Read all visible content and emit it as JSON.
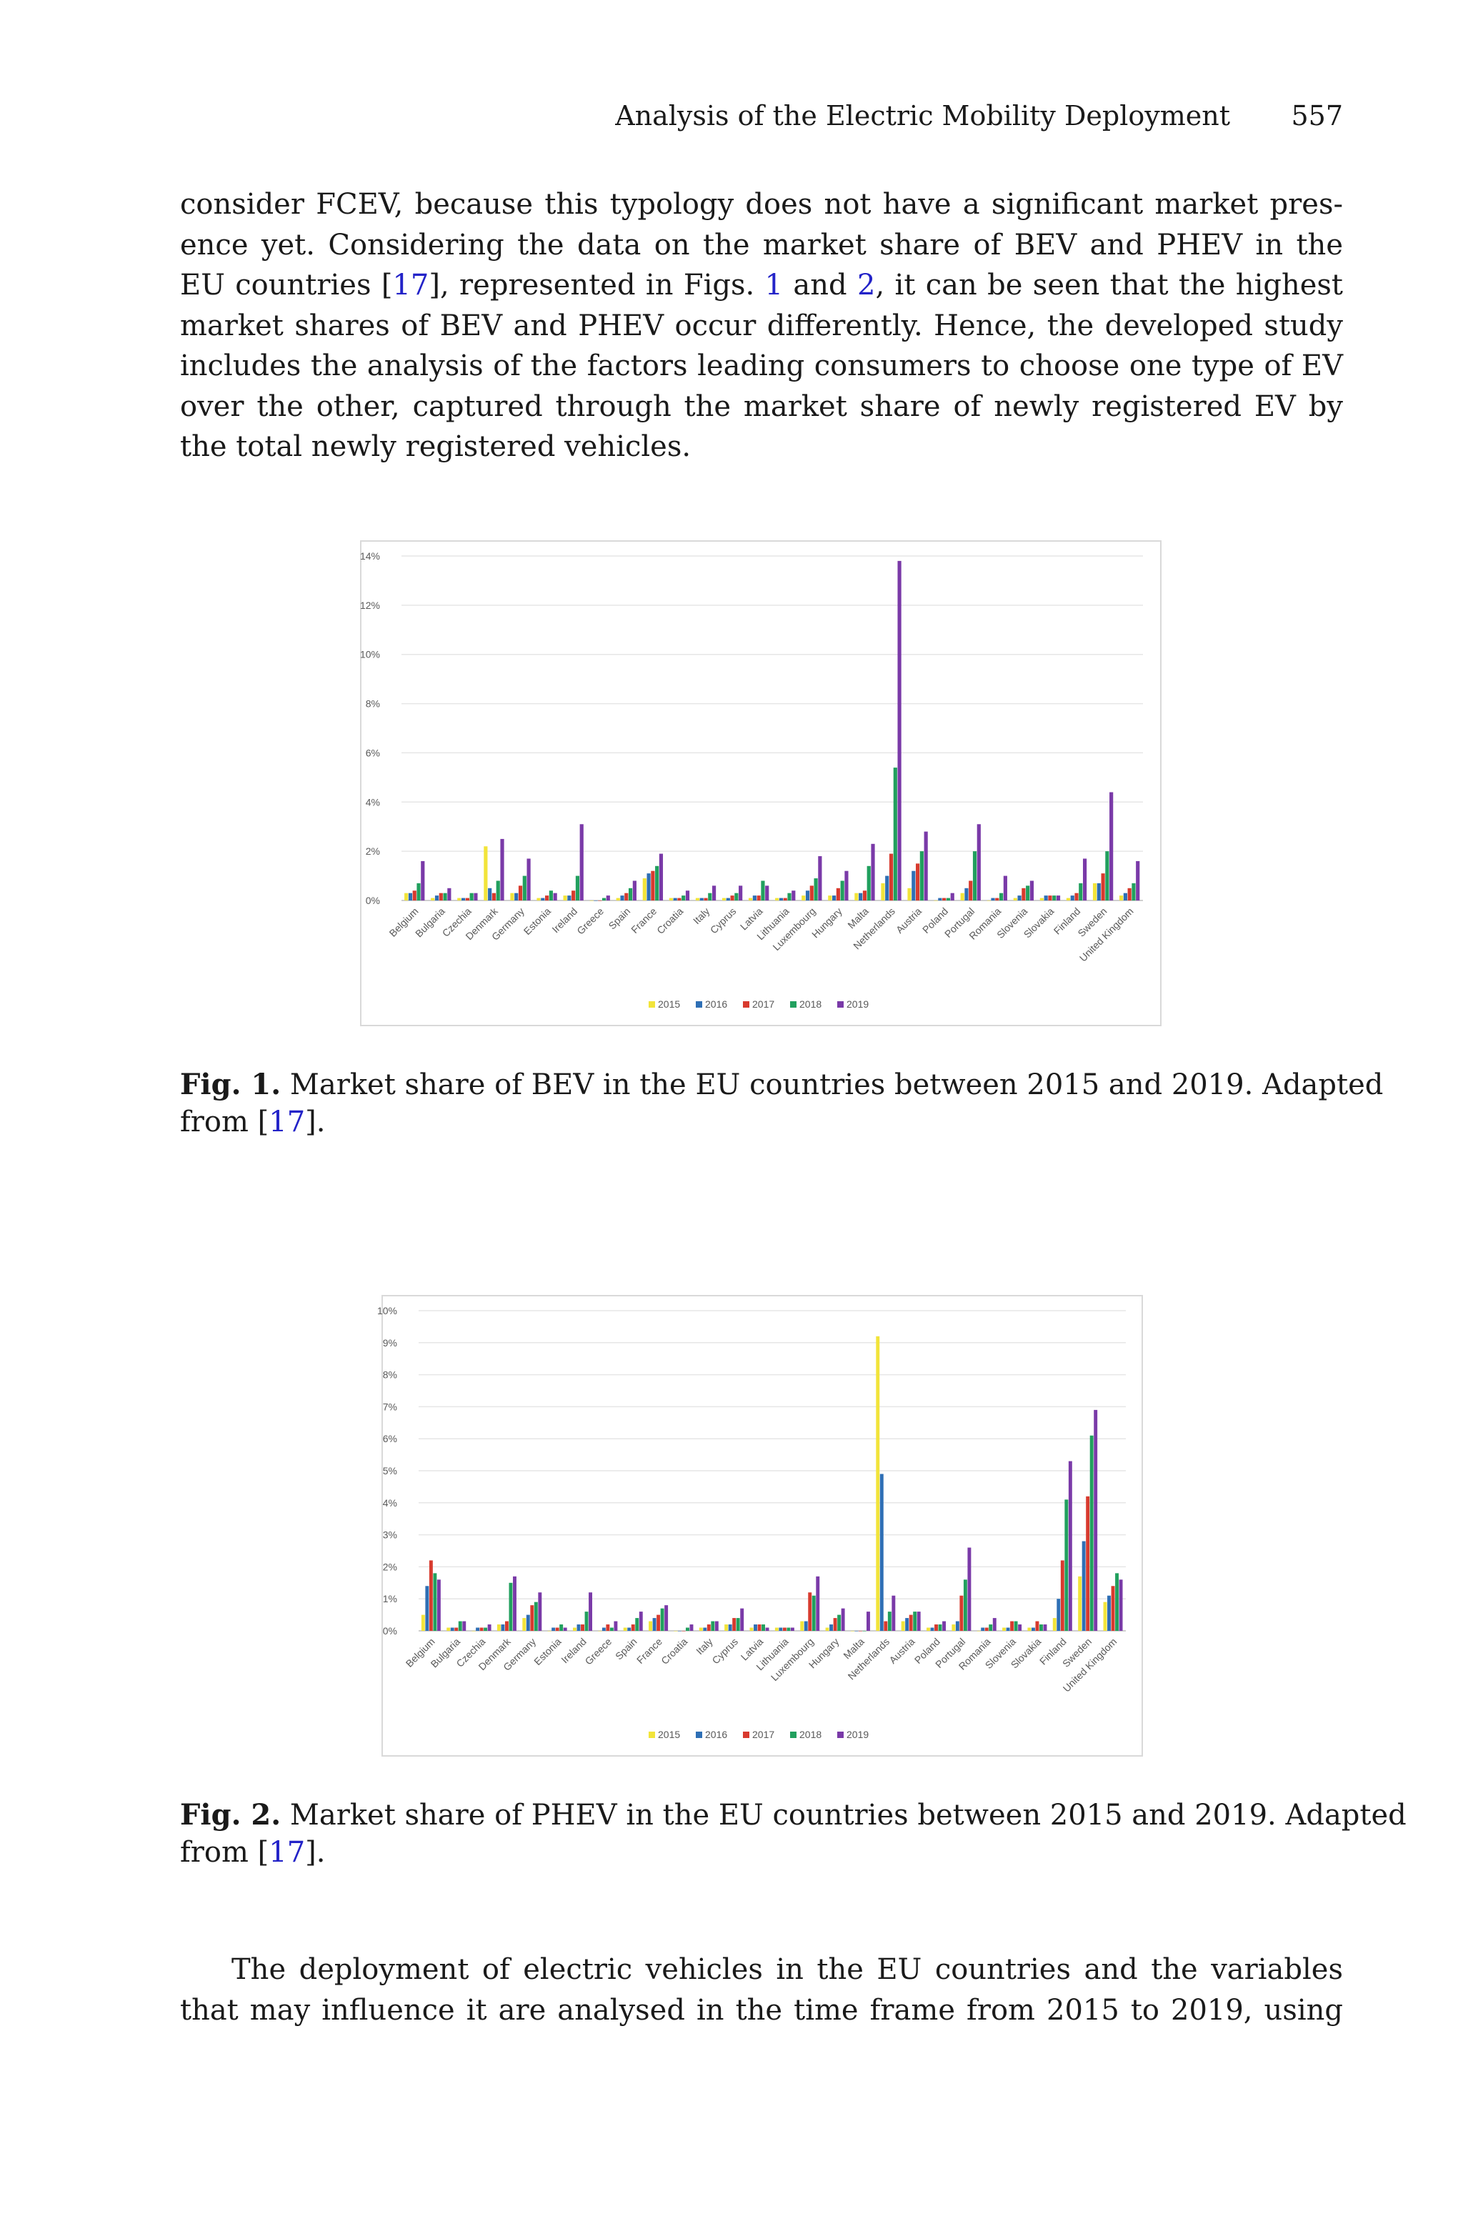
{
  "header": {
    "title": "Analysis of the Electric Mobility Deployment",
    "page_number": "557"
  },
  "paragraph1": [
    {
      "parts": [
        {
          "t": "consider FCEV, because this typology does not have a significant market pres-"
        }
      ]
    },
    {
      "parts": [
        {
          "t": "ence yet. Considering the data on the market share of BEV and PHEV in the"
        }
      ]
    },
    {
      "parts": [
        {
          "t": "EU countries ["
        },
        {
          "t": "17",
          "ref": true
        },
        {
          "t": "], represented in Figs. "
        },
        {
          "t": "1",
          "ref": true
        },
        {
          "t": " and "
        },
        {
          "t": "2",
          "ref": true
        },
        {
          "t": ", it can be seen that the highest"
        }
      ]
    },
    {
      "parts": [
        {
          "t": "market shares of BEV and PHEV occur differently. Hence, the developed study"
        }
      ]
    },
    {
      "parts": [
        {
          "t": "includes the analysis of the factors leading consumers to choose one type of EV"
        }
      ]
    },
    {
      "parts": [
        {
          "t": "over the other, captured through the market share of newly registered EV by"
        }
      ]
    },
    {
      "parts": [
        {
          "t": "the total newly registered vehicles."
        }
      ],
      "last": true
    }
  ],
  "figure1": {
    "caption_label": "Fig. 1.",
    "caption_text": " Market share of BEV in the EU countries between 2015 and 2019.  Adapted",
    "caption_line2_prefix": "from [",
    "caption_ref": "17",
    "caption_line2_suffix": "]."
  },
  "figure2": {
    "caption_label": "Fig. 2.",
    "caption_text": " Market share of PHEV in the EU countries between 2015 and 2019.  Adapted",
    "caption_line2_prefix": "from [",
    "caption_ref": "17",
    "caption_line2_suffix": "]."
  },
  "paragraph2": [
    {
      "parts": [
        {
          "t": "The deployment of electric vehicles in the EU countries and the variables"
        }
      ],
      "indent": true
    },
    {
      "parts": [
        {
          "t": "that may influence it are analysed in the time frame from 2015 to 2019, using"
        }
      ]
    }
  ],
  "chart_data": [
    {
      "type": "bar",
      "title": "",
      "xlabel": "",
      "ylabel": "",
      "ylim": [
        0,
        14
      ],
      "yticks": [
        "0%",
        "2%",
        "4%",
        "6%",
        "8%",
        "10%",
        "12%",
        "14%"
      ],
      "unit": "%",
      "grid": true,
      "legend_position": "bottom",
      "categories": [
        "Belgium",
        "Bulgaria",
        "Czechia",
        "Denmark",
        "Germany",
        "Estonia",
        "Ireland",
        "Greece",
        "Spain",
        "France",
        "Croatia",
        "Italy",
        "Cyprus",
        "Latvia",
        "Lithuania",
        "Luxembourg",
        "Hungary",
        "Malta",
        "Netherlands",
        "Austria",
        "Poland",
        "Portugal",
        "Romania",
        "Slovenia",
        "Slovakia",
        "Finland",
        "Sweden",
        "United Kingdom"
      ],
      "series": [
        {
          "name": "2015",
          "color": "#f2e43a",
          "values": [
            0.3,
            0.1,
            0.1,
            2.2,
            0.3,
            0.1,
            0.2,
            0.0,
            0.1,
            0.9,
            0.1,
            0.1,
            0.1,
            0.1,
            0.1,
            0.2,
            0.2,
            0.3,
            0.7,
            0.5,
            0.0,
            0.3,
            0.0,
            0.1,
            0.1,
            0.1,
            0.7,
            0.2
          ]
        },
        {
          "name": "2016",
          "color": "#2e6fb5",
          "values": [
            0.3,
            0.2,
            0.1,
            0.5,
            0.3,
            0.1,
            0.2,
            0.0,
            0.2,
            1.1,
            0.1,
            0.1,
            0.1,
            0.2,
            0.1,
            0.4,
            0.2,
            0.3,
            1.0,
            1.2,
            0.1,
            0.5,
            0.1,
            0.2,
            0.2,
            0.2,
            0.7,
            0.3
          ]
        },
        {
          "name": "2017",
          "color": "#d83a2e",
          "values": [
            0.4,
            0.3,
            0.1,
            0.3,
            0.6,
            0.2,
            0.4,
            0.0,
            0.3,
            1.2,
            0.1,
            0.1,
            0.2,
            0.2,
            0.1,
            0.6,
            0.5,
            0.4,
            1.9,
            1.5,
            0.1,
            0.8,
            0.1,
            0.5,
            0.2,
            0.3,
            1.1,
            0.5
          ]
        },
        {
          "name": "2018",
          "color": "#21a05e",
          "values": [
            0.7,
            0.3,
            0.3,
            0.8,
            1.0,
            0.4,
            1.0,
            0.1,
            0.5,
            1.4,
            0.2,
            0.3,
            0.3,
            0.8,
            0.3,
            0.9,
            0.8,
            1.4,
            5.4,
            2.0,
            0.1,
            2.0,
            0.3,
            0.6,
            0.2,
            0.7,
            2.0,
            0.7
          ]
        },
        {
          "name": "2019",
          "color": "#7a3aa8",
          "values": [
            1.6,
            0.5,
            0.3,
            2.5,
            1.7,
            0.3,
            3.1,
            0.2,
            0.8,
            1.9,
            0.4,
            0.6,
            0.6,
            0.6,
            0.4,
            1.8,
            1.2,
            2.3,
            13.8,
            2.8,
            0.3,
            3.1,
            1.0,
            0.8,
            0.2,
            1.7,
            4.4,
            1.6
          ]
        }
      ]
    },
    {
      "type": "bar",
      "title": "",
      "xlabel": "",
      "ylabel": "",
      "ylim": [
        0,
        10
      ],
      "yticks": [
        "0%",
        "1%",
        "2%",
        "3%",
        "4%",
        "5%",
        "6%",
        "7%",
        "8%",
        "9%",
        "10%"
      ],
      "unit": "%",
      "grid": true,
      "legend_position": "bottom",
      "categories": [
        "Belgium",
        "Bulgaria",
        "Czechia",
        "Denmark",
        "Germany",
        "Estonia",
        "Ireland",
        "Greece",
        "Spain",
        "France",
        "Croatia",
        "Italy",
        "Cyprus",
        "Latvia",
        "Lithuania",
        "Luxembourg",
        "Hungary",
        "Malta",
        "Netherlands",
        "Austria",
        "Poland",
        "Portugal",
        "Romania",
        "Slovenia",
        "Slovakia",
        "Finland",
        "Sweden",
        "United Kingdom"
      ],
      "series": [
        {
          "name": "2015",
          "color": "#f2e43a",
          "values": [
            0.5,
            0.1,
            0.0,
            0.2,
            0.4,
            0.0,
            0.1,
            0.0,
            0.1,
            0.3,
            0.0,
            0.1,
            0.2,
            0.1,
            0.1,
            0.3,
            0.1,
            0.0,
            9.2,
            0.3,
            0.1,
            0.2,
            0.0,
            0.1,
            0.1,
            0.4,
            1.7,
            0.9
          ]
        },
        {
          "name": "2016",
          "color": "#2e6fb5",
          "values": [
            1.4,
            0.1,
            0.1,
            0.2,
            0.5,
            0.1,
            0.2,
            0.1,
            0.1,
            0.4,
            0.0,
            0.1,
            0.2,
            0.2,
            0.1,
            0.3,
            0.2,
            0.0,
            4.9,
            0.4,
            0.1,
            0.3,
            0.1,
            0.1,
            0.1,
            1.0,
            2.8,
            1.1
          ]
        },
        {
          "name": "2017",
          "color": "#d83a2e",
          "values": [
            2.2,
            0.1,
            0.1,
            0.3,
            0.8,
            0.1,
            0.2,
            0.2,
            0.2,
            0.5,
            0.0,
            0.2,
            0.4,
            0.2,
            0.1,
            1.2,
            0.4,
            0.0,
            0.3,
            0.5,
            0.2,
            1.1,
            0.1,
            0.3,
            0.3,
            2.2,
            4.2,
            1.4
          ]
        },
        {
          "name": "2018",
          "color": "#21a05e",
          "values": [
            1.8,
            0.3,
            0.1,
            1.5,
            0.9,
            0.2,
            0.6,
            0.1,
            0.4,
            0.7,
            0.1,
            0.3,
            0.4,
            0.2,
            0.1,
            1.1,
            0.5,
            0.0,
            0.6,
            0.6,
            0.2,
            1.6,
            0.2,
            0.3,
            0.2,
            4.1,
            6.1,
            1.8
          ]
        },
        {
          "name": "2019",
          "color": "#7a3aa8",
          "values": [
            1.6,
            0.3,
            0.2,
            1.7,
            1.2,
            0.1,
            1.2,
            0.3,
            0.6,
            0.8,
            0.2,
            0.3,
            0.7,
            0.1,
            0.1,
            1.7,
            0.7,
            0.6,
            1.1,
            0.6,
            0.3,
            2.6,
            0.4,
            0.2,
            0.2,
            5.3,
            6.9,
            1.6
          ]
        }
      ]
    }
  ]
}
